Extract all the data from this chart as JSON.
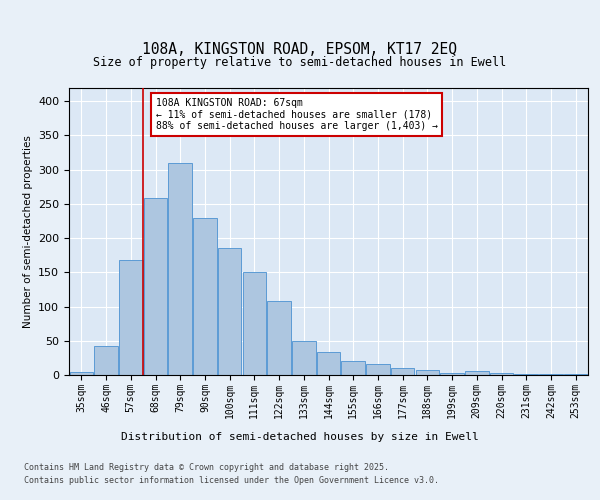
{
  "title_line1": "108A, KINGSTON ROAD, EPSOM, KT17 2EQ",
  "title_line2": "Size of property relative to semi-detached houses in Ewell",
  "xlabel": "Distribution of semi-detached houses by size in Ewell",
  "ylabel": "Number of semi-detached properties",
  "categories": [
    "35sqm",
    "46sqm",
    "57sqm",
    "68sqm",
    "79sqm",
    "90sqm",
    "100sqm",
    "111sqm",
    "122sqm",
    "133sqm",
    "144sqm",
    "155sqm",
    "166sqm",
    "177sqm",
    "188sqm",
    "199sqm",
    "209sqm",
    "220sqm",
    "231sqm",
    "242sqm",
    "253sqm"
  ],
  "values": [
    5,
    43,
    168,
    258,
    310,
    230,
    185,
    150,
    108,
    50,
    33,
    20,
    16,
    10,
    7,
    3,
    6,
    3,
    2,
    1,
    2
  ],
  "bar_color": "#adc6e0",
  "bar_edge_color": "#5b9bd5",
  "vline_color": "#cc0000",
  "annotation_title": "108A KINGSTON ROAD: 67sqm",
  "annotation_line1": "← 11% of semi-detached houses are smaller (178)",
  "annotation_line2": "88% of semi-detached houses are larger (1,403) →",
  "annotation_box_color": "#cc0000",
  "ylim": [
    0,
    420
  ],
  "yticks": [
    0,
    50,
    100,
    150,
    200,
    250,
    300,
    350,
    400
  ],
  "background_color": "#e8f0f8",
  "plot_bg_color": "#dce8f5",
  "footer_line1": "Contains HM Land Registry data © Crown copyright and database right 2025.",
  "footer_line2": "Contains public sector information licensed under the Open Government Licence v3.0."
}
